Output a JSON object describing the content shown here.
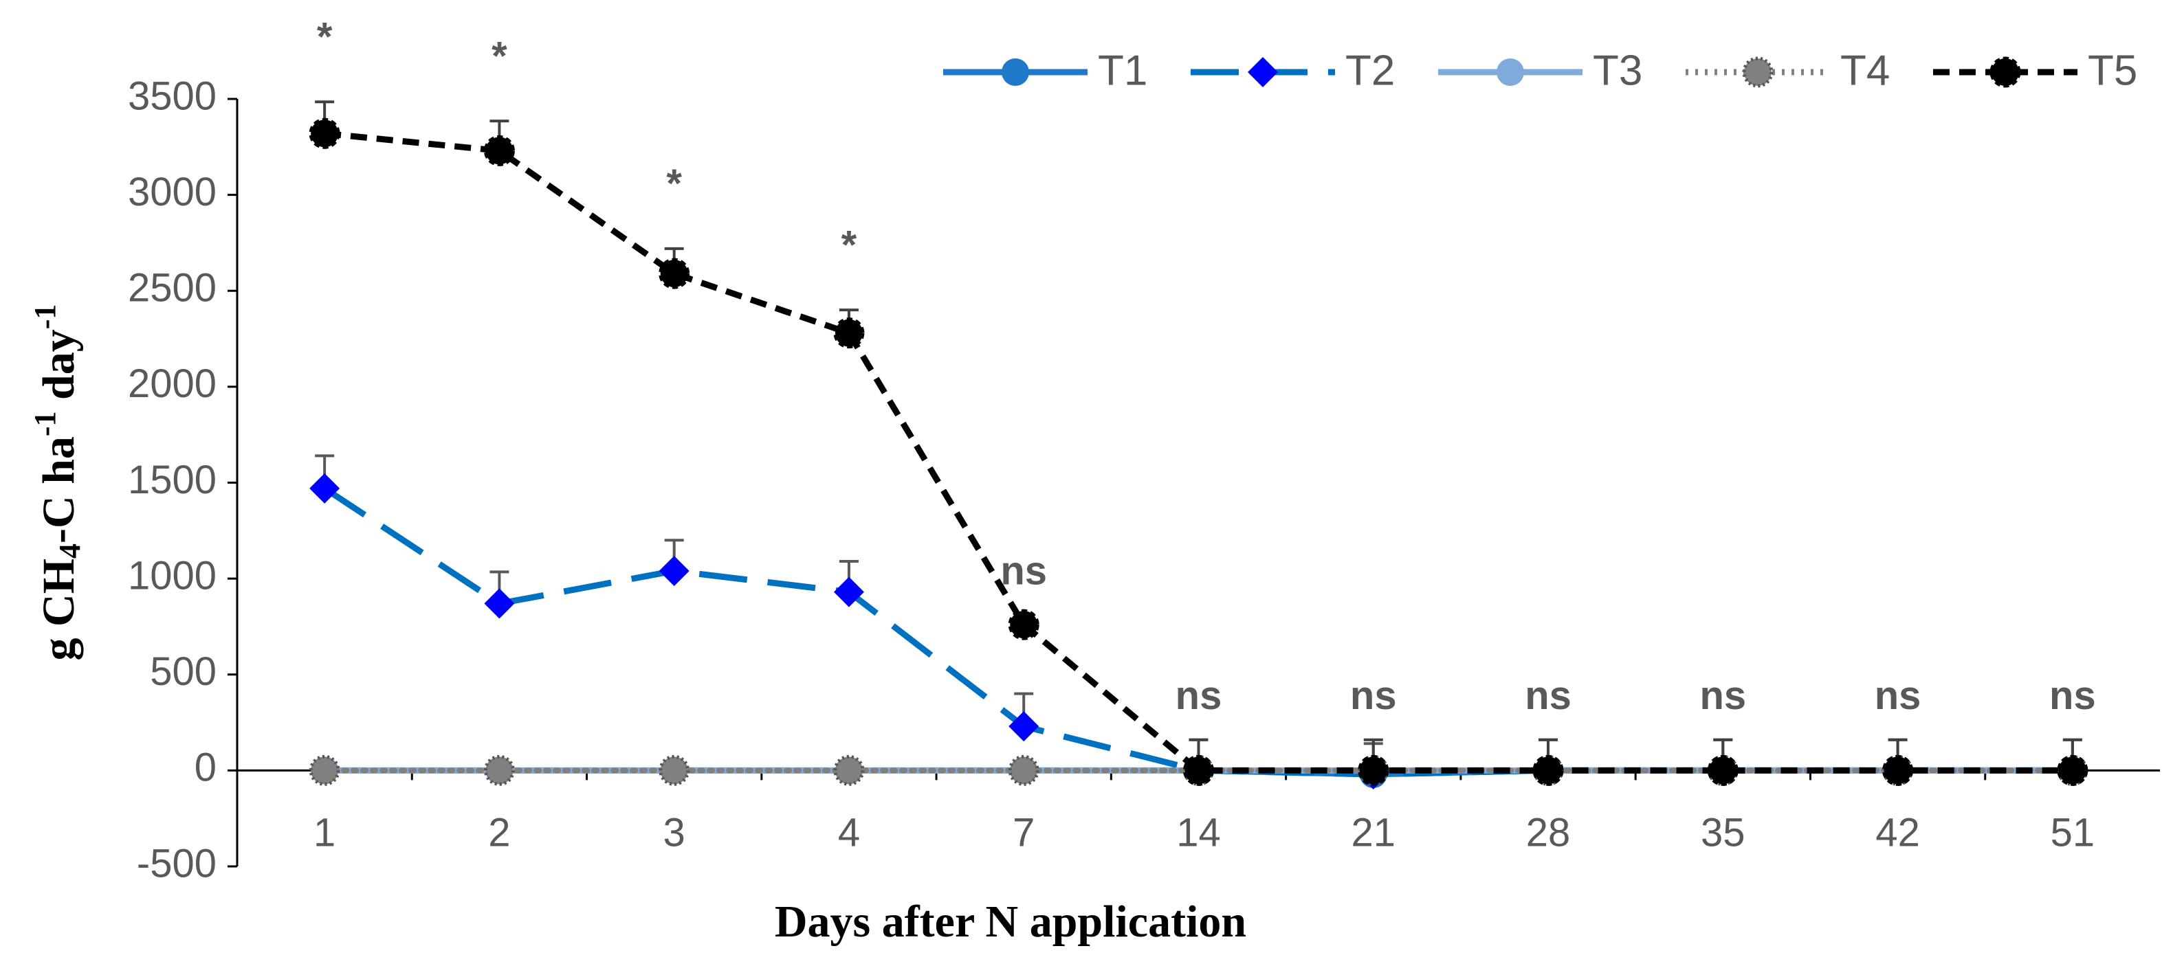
{
  "chart_data": {
    "type": "line",
    "y_label": [
      "g CH",
      "4",
      "-C ha",
      "-1",
      " day",
      "-1"
    ],
    "x_label": "Days after N application",
    "categories": [
      "1",
      "2",
      "3",
      "4",
      "7",
      "14",
      "21",
      "28",
      "35",
      "42",
      "51"
    ],
    "ylim": [
      -500,
      3500
    ],
    "yticks": [
      -500,
      0,
      500,
      1000,
      1500,
      2000,
      2500,
      3000,
      3500
    ],
    "legend": "top-right",
    "annotations": [
      "*",
      "*",
      "*",
      "*",
      "ns",
      "ns",
      "ns",
      "ns",
      "ns",
      "ns",
      "ns"
    ],
    "series": [
      {
        "name": "T1",
        "color": "#1f78c8",
        "line_style": "solid",
        "marker": "circle",
        "values": [
          0,
          0,
          0,
          0,
          0,
          0,
          -20,
          0,
          0,
          0,
          0
        ]
      },
      {
        "name": "T2",
        "color": "#0070c0",
        "marker_color": "#0000ff",
        "line_style": "long-dash",
        "marker": "diamond",
        "values": [
          1470,
          870,
          1040,
          930,
          230,
          0,
          -20,
          0,
          0,
          0,
          0
        ],
        "errors": [
          170,
          165,
          160,
          160,
          170,
          160,
          160,
          160,
          160,
          160,
          160
        ]
      },
      {
        "name": "T3",
        "color": "#7faadc",
        "line_style": "solid",
        "marker": "circle",
        "values": [
          0,
          0,
          0,
          0,
          0,
          0,
          0,
          0,
          0,
          0,
          0
        ]
      },
      {
        "name": "T4",
        "color": "#808080",
        "line_style": "dotted",
        "marker": "circle",
        "values": [
          0,
          0,
          0,
          0,
          0,
          0,
          0,
          0,
          0,
          0,
          0
        ]
      },
      {
        "name": "T5",
        "color": "#000000",
        "line_style": "dash",
        "marker": "circle",
        "values": [
          3320,
          3230,
          2590,
          2280,
          760,
          0,
          0,
          0,
          0,
          0,
          0
        ],
        "errors": [
          165,
          155,
          130,
          120,
          50,
          160,
          160,
          160,
          160,
          160,
          160
        ]
      }
    ]
  }
}
